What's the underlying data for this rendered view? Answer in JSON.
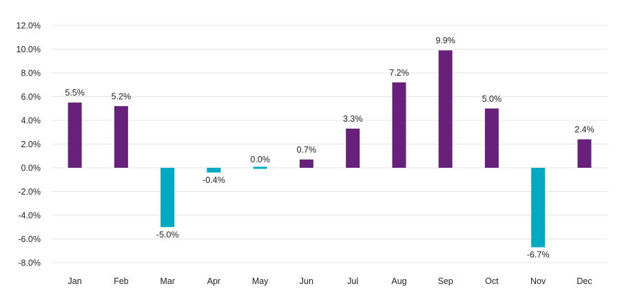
{
  "chart_data": {
    "type": "bar",
    "title": "",
    "xlabel": "",
    "ylabel": "",
    "categories": [
      "Jan",
      "Feb",
      "Mar",
      "Apr",
      "May",
      "Jun",
      "Jul",
      "Aug",
      "Sep",
      "Oct",
      "Nov",
      "Dec"
    ],
    "values": [
      5.5,
      5.2,
      -5.0,
      -0.4,
      0.0,
      0.7,
      3.3,
      7.2,
      9.9,
      5.0,
      -6.7,
      2.4
    ],
    "data_labels": [
      "5.5%",
      "5.2%",
      "-5.0%",
      "-0.4%",
      "0.0%",
      "0.7%",
      "3.3%",
      "7.2%",
      "9.9%",
      "5.0%",
      "-6.7%",
      "2.4%"
    ],
    "ylim": [
      -8,
      12
    ],
    "y_ticks": [
      12,
      10,
      8,
      6,
      4,
      2,
      0,
      -2,
      -4,
      -6,
      -8
    ],
    "y_tick_labels": [
      "12.0%",
      "10.0%",
      "8.0%",
      "6.0%",
      "4.0%",
      "2.0%",
      "0.0%",
      "-2.0%",
      "-4.0%",
      "-6.0%",
      "-8.0%"
    ],
    "grid": true,
    "legend": "none",
    "colors": {
      "positive": "#68217a",
      "negative": "#00aac3"
    }
  }
}
